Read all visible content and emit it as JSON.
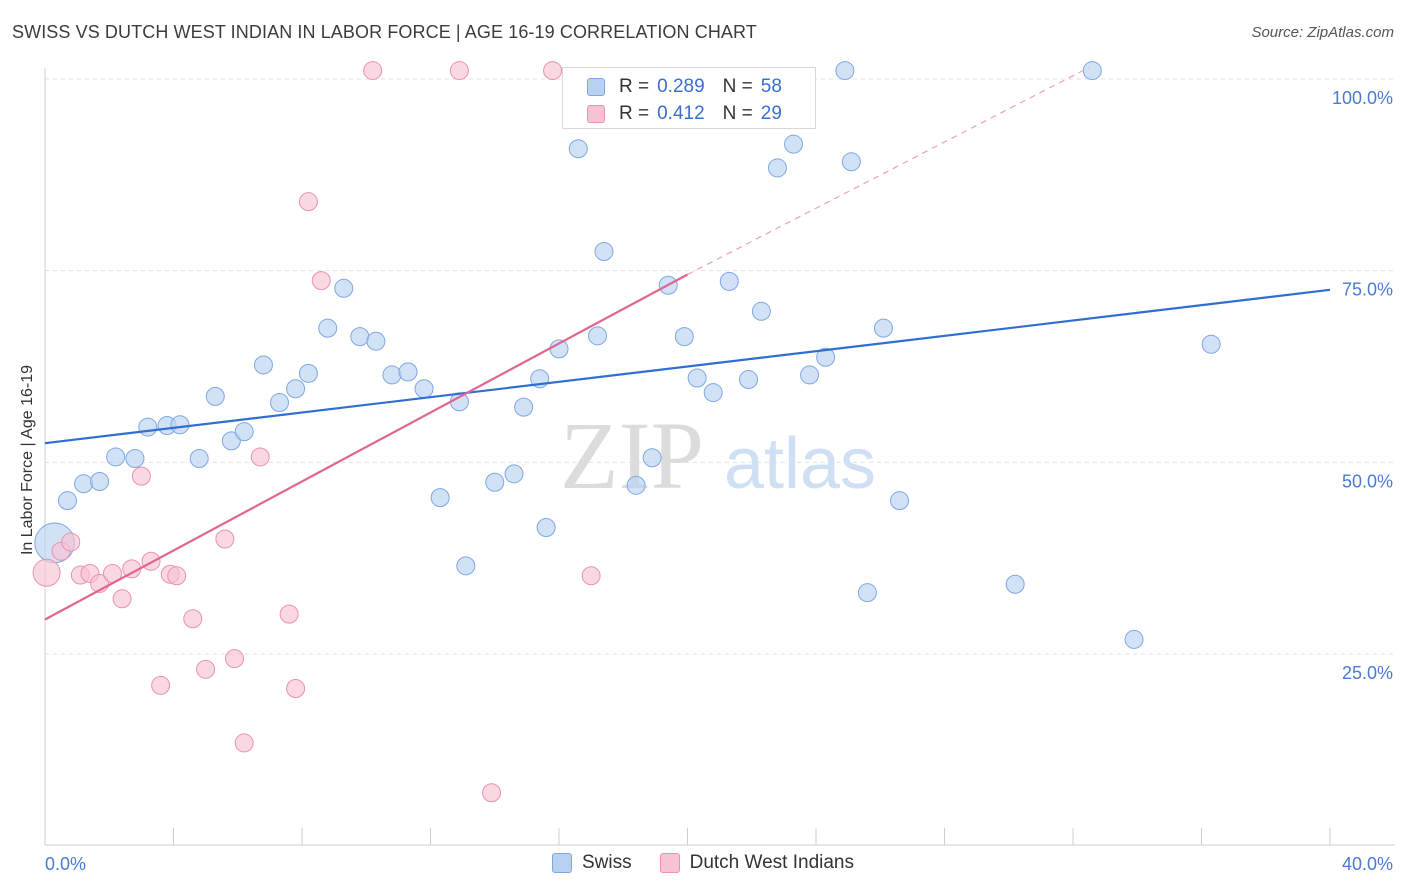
{
  "header": {
    "title": "SWISS VS DUTCH WEST INDIAN IN LABOR FORCE | AGE 16-19 CORRELATION CHART",
    "source": "Source: ZipAtlas.com"
  },
  "watermark": {
    "zip": "ZIP",
    "atlas": "atlas"
  },
  "legend": {
    "swiss": {
      "r_label": "R =",
      "r_value": "0.289",
      "n_label": "N =",
      "n_value": "58"
    },
    "dutch": {
      "r_label": "R =",
      "r_value": "0.412",
      "n_label": "N =",
      "n_value": "29"
    }
  },
  "bottom_legend": {
    "swiss": "Swiss",
    "dutch": "Dutch West Indians"
  },
  "colors": {
    "swiss_fill": "#b8d1f1",
    "swiss_stroke": "#7fa8e0",
    "swiss_line": "#2f6fd0",
    "dutch_fill": "#f7c3d2",
    "dutch_stroke": "#eb92ae",
    "dutch_line": "#e0658f",
    "grid": "#e0e0e0",
    "tick_text": "#4a7bd0"
  },
  "chart_data": {
    "type": "scatter",
    "title": "SWISS VS DUTCH WEST INDIAN IN LABOR FORCE | AGE 16-19 CORRELATION CHART",
    "xlabel": "",
    "ylabel": "In Labor Force | Age 16-19",
    "xlim": [
      0,
      40
    ],
    "ylim": [
      0,
      103
    ],
    "x_tick_labels": [
      "0.0%",
      "40.0%"
    ],
    "y_ticks": [
      25,
      50,
      75,
      100
    ],
    "y_tick_labels": [
      "25.0%",
      "50.0%",
      "75.0%",
      "100.0%"
    ],
    "grid": true,
    "legend_placement": "top-center",
    "series": [
      {
        "name": "Swiss",
        "r": 0.289,
        "n": 58,
        "trend": {
          "x": [
            0,
            40
          ],
          "y": [
            52.5,
            72.5
          ]
        },
        "points": [
          {
            "x": 0.3,
            "y": 39.5,
            "s": 2.2
          },
          {
            "x": 0.7,
            "y": 45.0
          },
          {
            "x": 1.2,
            "y": 47.2
          },
          {
            "x": 1.7,
            "y": 47.5
          },
          {
            "x": 2.2,
            "y": 50.7
          },
          {
            "x": 2.8,
            "y": 50.5
          },
          {
            "x": 3.2,
            "y": 54.6
          },
          {
            "x": 3.8,
            "y": 54.8
          },
          {
            "x": 4.2,
            "y": 54.9
          },
          {
            "x": 4.8,
            "y": 50.5
          },
          {
            "x": 5.3,
            "y": 58.6
          },
          {
            "x": 5.8,
            "y": 52.8
          },
          {
            "x": 6.2,
            "y": 54.0
          },
          {
            "x": 6.8,
            "y": 62.7
          },
          {
            "x": 7.3,
            "y": 57.8
          },
          {
            "x": 7.8,
            "y": 59.6
          },
          {
            "x": 8.2,
            "y": 61.6
          },
          {
            "x": 8.8,
            "y": 67.5
          },
          {
            "x": 9.3,
            "y": 72.7
          },
          {
            "x": 9.8,
            "y": 66.4
          },
          {
            "x": 10.3,
            "y": 65.8
          },
          {
            "x": 10.8,
            "y": 61.4
          },
          {
            "x": 11.3,
            "y": 61.8
          },
          {
            "x": 11.8,
            "y": 59.6
          },
          {
            "x": 12.3,
            "y": 45.4
          },
          {
            "x": 12.9,
            "y": 57.9
          },
          {
            "x": 13.1,
            "y": 36.5
          },
          {
            "x": 14.0,
            "y": 47.4
          },
          {
            "x": 14.6,
            "y": 48.5
          },
          {
            "x": 14.9,
            "y": 57.2
          },
          {
            "x": 15.4,
            "y": 60.9
          },
          {
            "x": 15.6,
            "y": 41.5
          },
          {
            "x": 16.0,
            "y": 64.8
          },
          {
            "x": 16.6,
            "y": 90.9
          },
          {
            "x": 17.2,
            "y": 66.5
          },
          {
            "x": 17.4,
            "y": 77.5
          },
          {
            "x": 18.4,
            "y": 47.0
          },
          {
            "x": 18.9,
            "y": 50.6
          },
          {
            "x": 19.4,
            "y": 73.1
          },
          {
            "x": 19.9,
            "y": 66.4
          },
          {
            "x": 20.3,
            "y": 61.0
          },
          {
            "x": 20.8,
            "y": 59.1
          },
          {
            "x": 21.3,
            "y": 73.6
          },
          {
            "x": 21.9,
            "y": 60.8
          },
          {
            "x": 22.3,
            "y": 69.7
          },
          {
            "x": 22.8,
            "y": 88.4
          },
          {
            "x": 23.3,
            "y": 91.5
          },
          {
            "x": 23.8,
            "y": 61.4
          },
          {
            "x": 24.3,
            "y": 63.7
          },
          {
            "x": 24.9,
            "y": 101.1
          },
          {
            "x": 25.1,
            "y": 89.2
          },
          {
            "x": 25.6,
            "y": 33.0
          },
          {
            "x": 26.1,
            "y": 67.5
          },
          {
            "x": 26.6,
            "y": 45.0
          },
          {
            "x": 30.2,
            "y": 34.1
          },
          {
            "x": 32.6,
            "y": 101.1
          },
          {
            "x": 33.9,
            "y": 26.9
          },
          {
            "x": 36.3,
            "y": 65.4
          }
        ]
      },
      {
        "name": "Dutch West Indians",
        "r": 0.412,
        "n": 29,
        "trend": {
          "x": [
            0,
            20
          ],
          "y": [
            29.5,
            74.5
          ]
        },
        "trend_dashed": {
          "x": [
            20,
            32.5
          ],
          "y": [
            74.5,
            101.5
          ]
        },
        "points": [
          {
            "x": 0.05,
            "y": 35.6,
            "s": 1.5
          },
          {
            "x": 0.5,
            "y": 38.4
          },
          {
            "x": 0.8,
            "y": 39.6
          },
          {
            "x": 1.1,
            "y": 35.3
          },
          {
            "x": 1.4,
            "y": 35.5
          },
          {
            "x": 1.7,
            "y": 34.2
          },
          {
            "x": 2.1,
            "y": 35.5
          },
          {
            "x": 2.4,
            "y": 32.2
          },
          {
            "x": 2.7,
            "y": 36.1
          },
          {
            "x": 3.0,
            "y": 48.2
          },
          {
            "x": 3.3,
            "y": 37.1
          },
          {
            "x": 3.6,
            "y": 20.9
          },
          {
            "x": 3.9,
            "y": 35.4
          },
          {
            "x": 4.1,
            "y": 35.2
          },
          {
            "x": 4.6,
            "y": 29.6
          },
          {
            "x": 5.0,
            "y": 23.0
          },
          {
            "x": 5.6,
            "y": 40.0
          },
          {
            "x": 5.9,
            "y": 24.4
          },
          {
            "x": 6.2,
            "y": 13.4
          },
          {
            "x": 6.7,
            "y": 50.7
          },
          {
            "x": 7.6,
            "y": 30.2
          },
          {
            "x": 7.8,
            "y": 20.5
          },
          {
            "x": 8.2,
            "y": 84.0
          },
          {
            "x": 8.6,
            "y": 73.7
          },
          {
            "x": 10.2,
            "y": 101.1
          },
          {
            "x": 12.9,
            "y": 101.1
          },
          {
            "x": 13.9,
            "y": 6.9
          },
          {
            "x": 15.8,
            "y": 101.1
          },
          {
            "x": 17.0,
            "y": 35.2
          }
        ]
      }
    ]
  }
}
